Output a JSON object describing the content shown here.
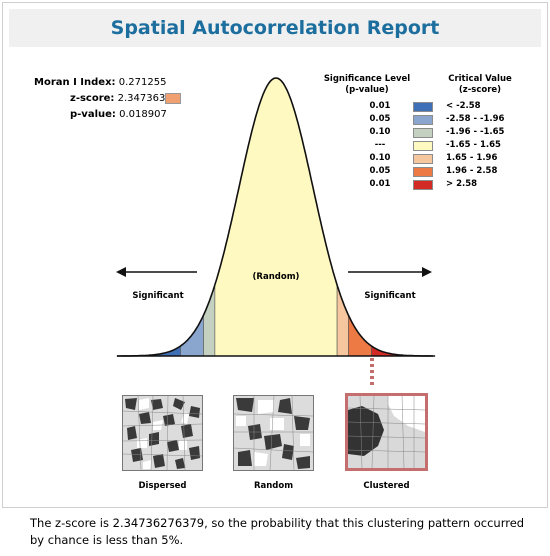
{
  "title": "Spatial Autocorrelation Report",
  "stats": {
    "moran_label": "Moran I Index:",
    "moran_value": "0.271255",
    "z_label": "z-score:",
    "z_value": "2.347363",
    "p_label": "p-value:",
    "p_value": "0.018907",
    "z_marker_color": "#f0a071"
  },
  "legend": {
    "sig_header_1": "Significance Level",
    "sig_header_2": "(p-value)",
    "cv_header_1": "Critical Value",
    "cv_header_2": "(z-score)",
    "rows": [
      {
        "sig": "0.01",
        "cv": "< -2.58",
        "color": "#3f6fb7"
      },
      {
        "sig": "0.05",
        "cv": "-2.58 - -1.96",
        "color": "#8aa6cf"
      },
      {
        "sig": "0.10",
        "cv": "-1.96 - -1.65",
        "color": "#c4d1c0"
      },
      {
        "sig": "---",
        "cv": "-1.65 - 1.65",
        "color": "#fdf9c0"
      },
      {
        "sig": "0.10",
        "cv": "1.65 - 1.96",
        "color": "#f6c79e"
      },
      {
        "sig": "0.05",
        "cv": "1.96 - 2.58",
        "color": "#ed7a45"
      },
      {
        "sig": "0.01",
        "cv": "> 2.58",
        "color": "#d32a25"
      }
    ]
  },
  "curve_labels": {
    "random": "(Random)",
    "significant_left": "Significant",
    "significant_right": "Significant"
  },
  "maps": {
    "dispersed": "Dispersed",
    "random": "Random",
    "clustered": "Clustered"
  },
  "summary": "The z-score is 2.34736276379, so the probability that this clustering pattern occurred by chance is less than 5%."
}
